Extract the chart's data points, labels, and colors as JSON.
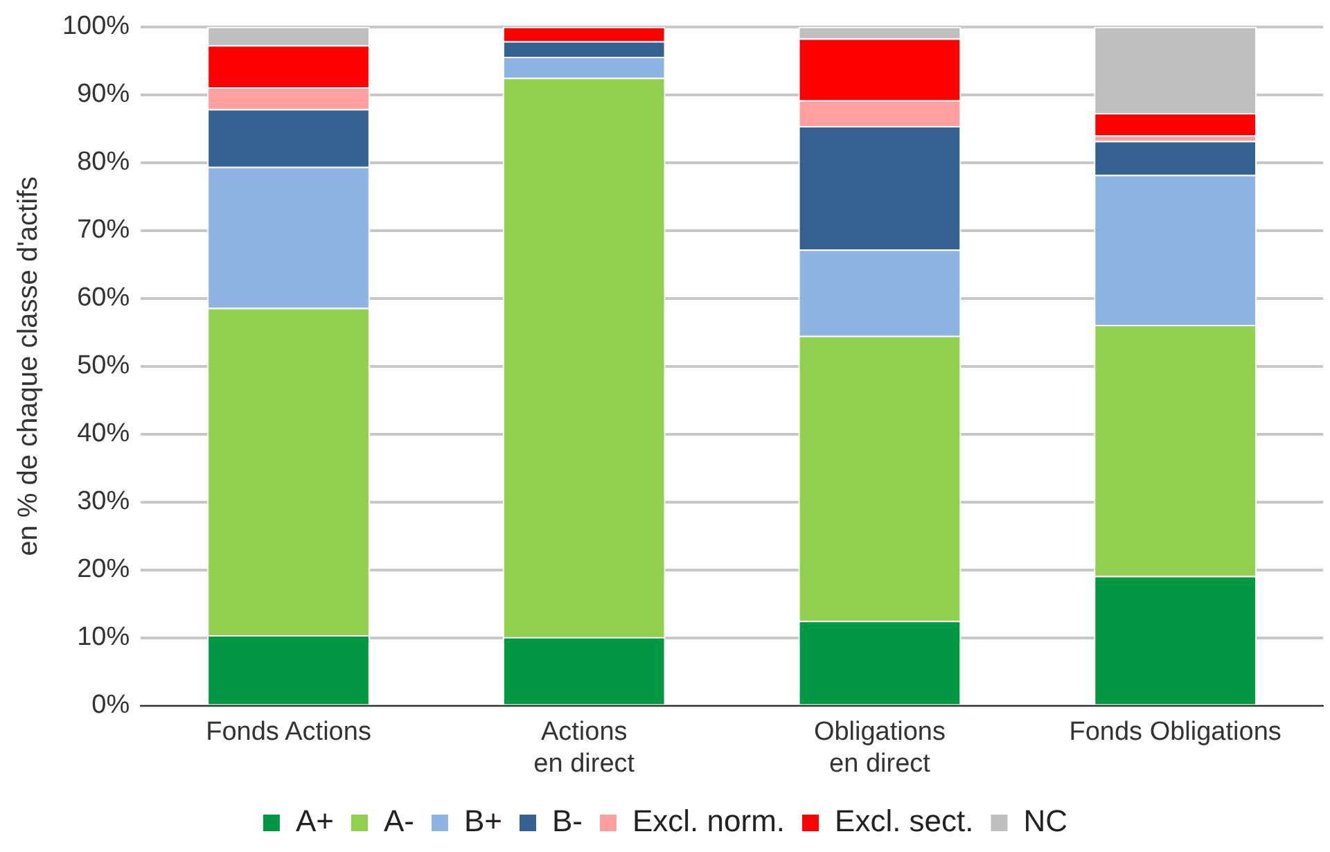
{
  "chart_data": {
    "type": "bar",
    "stacked": true,
    "ylabel": "en % de chaque classe d'actifs",
    "categories": [
      "Fonds Actions",
      "Actions\nen direct",
      "Obligations\nen direct",
      "Fonds Obligations"
    ],
    "series": [
      {
        "name": "A+",
        "color": "#009843",
        "values": [
          10.4,
          10.1,
          12.5,
          19.1
        ]
      },
      {
        "name": "A-",
        "color": "#92d050",
        "values": [
          48.2,
          82.4,
          42.0,
          37.0
        ]
      },
      {
        "name": "B+",
        "color": "#8eb4e3",
        "values": [
          20.8,
          3.1,
          12.7,
          22.1
        ]
      },
      {
        "name": "B-",
        "color": "#356191",
        "values": [
          8.5,
          2.3,
          18.2,
          5.0
        ]
      },
      {
        "name": "Excl. norm.",
        "color": "#ff9f9f",
        "values": [
          3.2,
          0,
          3.8,
          0.8
        ]
      },
      {
        "name": "Excl. sect.",
        "color": "#ff0000",
        "values": [
          6.2,
          2.1,
          9.1,
          3.3
        ]
      },
      {
        "name": "NC",
        "color": "#bfbfbf",
        "values": [
          2.7,
          0,
          1.7,
          12.7
        ]
      }
    ],
    "ylim": [
      0,
      100
    ],
    "yticks": [
      {
        "value": 0,
        "label": "0%"
      },
      {
        "value": 10,
        "label": "10%"
      },
      {
        "value": 20,
        "label": "20%"
      },
      {
        "value": 30,
        "label": "30%"
      },
      {
        "value": 40,
        "label": "40%"
      },
      {
        "value": 50,
        "label": "50%"
      },
      {
        "value": 60,
        "label": "60%"
      },
      {
        "value": 70,
        "label": "70%"
      },
      {
        "value": 80,
        "label": "80%"
      },
      {
        "value": 90,
        "label": "90%"
      },
      {
        "value": 100,
        "label": "100%"
      }
    ],
    "grid": "y",
    "legend": "bottom"
  }
}
